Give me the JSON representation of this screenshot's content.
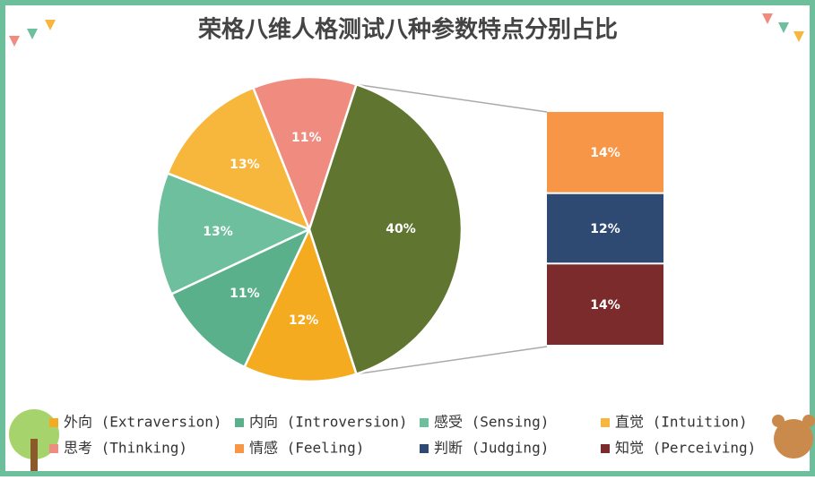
{
  "chart_data": {
    "type": "pie-of-bar",
    "title": "荣格八维人格测试八种参数特点分别占比",
    "categories": [
      "外向 (Extraversion)",
      "内向 (Introversion)",
      "感受 (Sensing)",
      "直觉 (Intuition)",
      "思考 (Thinking)",
      "情感 (Feeling)",
      "判断 (Judging)",
      "知觉 (Perceiving)"
    ],
    "colors": [
      "#f5ab1f",
      "#5bb08c",
      "#6dbf9d",
      "#f6b73c",
      "#f08b80",
      "#f79646",
      "#2e4a73",
      "#7b2b2b"
    ],
    "pie": {
      "values": [
        12,
        11,
        13,
        13,
        11,
        40
      ],
      "value_labels": [
        "12%",
        "11%",
        "13%",
        "13%",
        "11%",
        "40%"
      ],
      "other_color": "#607530"
    },
    "bar": {
      "values": [
        14,
        12,
        14
      ],
      "value_labels": [
        "14%",
        "12%",
        "14%"
      ]
    }
  }
}
